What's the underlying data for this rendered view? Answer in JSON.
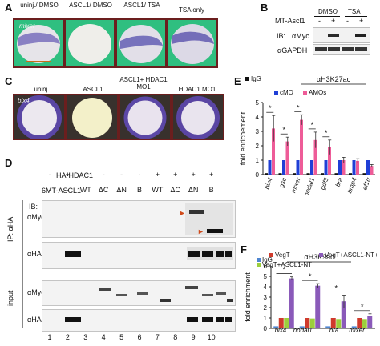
{
  "panels": {
    "A": {
      "label": "A",
      "inset_text": "mixer",
      "conditions": [
        "uninj./ DMSO",
        "ASCL1/ DMSO",
        "ASCL1/ TSA",
        "TSA only"
      ]
    },
    "B": {
      "label": "B",
      "row_label": "MT-Ascl1",
      "groups": [
        "DMSO",
        "TSA"
      ],
      "signs": [
        "-",
        "+",
        "-",
        "+"
      ],
      "ib_label": "IB:",
      "ib_target": "αMyc",
      "loading": "αGAPDH"
    },
    "C": {
      "label": "C",
      "inset_text": "bix4",
      "conditions": [
        "uninj.",
        "ASCL1",
        "ASCL1+ HDAC1 MO1",
        "HDAC1 MO1"
      ]
    },
    "D": {
      "label": "D",
      "row1_label": "HA-HDAC1",
      "row1_signs": [
        "-",
        "+",
        "-",
        "-",
        "-",
        "-",
        "+",
        "+",
        "+",
        "+"
      ],
      "row2_label": "6MT-ASCL1",
      "row2_values": [
        "-",
        "-",
        "WT",
        "ΔC",
        "ΔN",
        "B",
        "WT",
        "ΔC",
        "ΔN",
        "B"
      ],
      "ip_label": "IP: αHA",
      "ib_label": "IB:",
      "blots": [
        "αMyc",
        "αHA",
        "αMyc",
        "αHA"
      ],
      "input_label": "input",
      "lanes": [
        "1",
        "2",
        "3",
        "4",
        "5",
        "6",
        "7",
        "8",
        "9",
        "10"
      ]
    },
    "E": {
      "label": "E",
      "title": "αH3K27ac",
      "ylabel": "fold enrichement",
      "legend": [
        "IgG",
        "cMO",
        "AMOs"
      ],
      "colors": {
        "IgG": "#111111",
        "cMO": "#1f3fd6",
        "AMOs": "#ee5c98"
      },
      "sig_mark": "*"
    },
    "F": {
      "label": "F",
      "title": "αH3K9ac",
      "ylabel": "fold enrichment",
      "legend": [
        "IgG",
        "VegT",
        "VegT+ASCL1-NT",
        "VegT+ASCL1-NT+TSA"
      ],
      "colors": {
        "IgG": "#4f86d1",
        "VegT": "#cf3a2c",
        "VegT+ASCL1-NT": "#9ccf3c",
        "VegT+ASCL1-NT+TSA": "#8a5ab9"
      },
      "sig_mark": "*"
    }
  },
  "chart_data": [
    {
      "type": "bar",
      "title": "αH3K27ac",
      "xlabel": "",
      "ylabel": "fold enrichement",
      "ylim": [
        0,
        5
      ],
      "yticks": [
        "0",
        "1",
        "2",
        "3",
        "4",
        "5"
      ],
      "categories": [
        "bix4",
        "gsc",
        "mixer",
        "nodal1",
        "gdf3",
        "bra",
        "bmp4",
        "ef1α"
      ],
      "series": [
        {
          "name": "IgG",
          "values": [
            0.1,
            0.1,
            0.1,
            0.1,
            0.1,
            0.1,
            0.1,
            0.1
          ]
        },
        {
          "name": "cMO",
          "values": [
            1.0,
            1.0,
            1.0,
            1.0,
            1.0,
            1.0,
            1.0,
            1.0
          ]
        },
        {
          "name": "AMOs",
          "values": [
            3.2,
            2.3,
            3.8,
            2.4,
            1.9,
            1.0,
            0.95,
            0.6
          ]
        }
      ],
      "errors": [
        0.9,
        0.3,
        0.35,
        0.55,
        0.5,
        0.2,
        0.15,
        0.1
      ],
      "significant": [
        true,
        true,
        true,
        true,
        true,
        false,
        false,
        false
      ],
      "legend_position": "top"
    },
    {
      "type": "bar",
      "title": "αH3K9ac",
      "xlabel": "",
      "ylabel": "fold enrichment",
      "ylim": [
        0,
        6
      ],
      "yticks": [
        "0",
        "1",
        "2",
        "3",
        "4",
        "5",
        "6"
      ],
      "categories": [
        "bix4",
        "nodal1",
        "bra",
        "mixer"
      ],
      "series": [
        {
          "name": "IgG",
          "values": [
            0.2,
            0.2,
            0.2,
            0.2
          ]
        },
        {
          "name": "VegT",
          "values": [
            1.0,
            1.0,
            1.0,
            1.0
          ]
        },
        {
          "name": "VegT+ASCL1-NT",
          "values": [
            1.0,
            0.95,
            0.9,
            0.9
          ]
        },
        {
          "name": "VegT+ASCL1-NT+TSA",
          "values": [
            4.8,
            4.1,
            2.6,
            1.2
          ]
        }
      ],
      "errors": [
        0.15,
        0.2,
        0.6,
        0.2
      ],
      "significant": [
        true,
        true,
        true,
        true
      ],
      "legend_position": "top-left"
    }
  ]
}
